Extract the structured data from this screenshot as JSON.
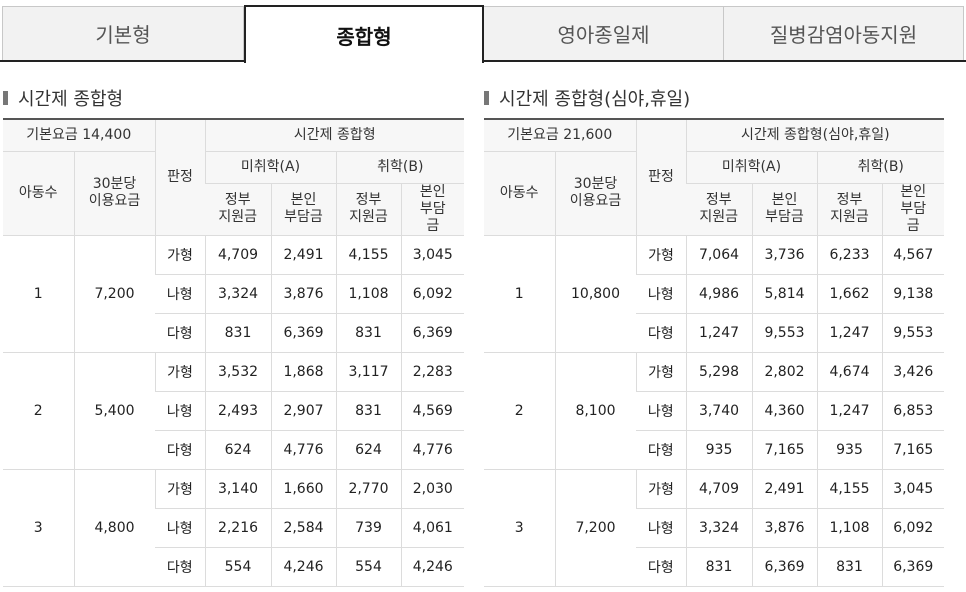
{
  "tabs": [
    {
      "label": "기본형",
      "active": false
    },
    {
      "label": "종합형",
      "active": true
    },
    {
      "label": "영아종일제",
      "active": false
    },
    {
      "label": "질병감염아동지원",
      "active": false
    }
  ],
  "tables": [
    {
      "title": "시간제 종합형",
      "base_fee": "기본요금 14,400",
      "header": {
        "group": "시간제 종합형",
        "child_count": "아동수",
        "fee_30min": "30분당 이용요금",
        "judge": "판정",
        "unenrolled": "미취학(A)",
        "enrolled": "취학(B)",
        "gov": "정부 지원금",
        "self": "본인 부담금"
      },
      "rows": [
        {
          "children": "1",
          "fee": "7,200",
          "grades": [
            {
              "grade": "가형",
              "a_gov": "4,709",
              "a_self": "2,491",
              "b_gov": "4,155",
              "b_self": "3,045"
            },
            {
              "grade": "나형",
              "a_gov": "3,324",
              "a_self": "3,876",
              "b_gov": "1,108",
              "b_self": "6,092"
            },
            {
              "grade": "다형",
              "a_gov": "831",
              "a_self": "6,369",
              "b_gov": "831",
              "b_self": "6,369"
            }
          ]
        },
        {
          "children": "2",
          "fee": "5,400",
          "grades": [
            {
              "grade": "가형",
              "a_gov": "3,532",
              "a_self": "1,868",
              "b_gov": "3,117",
              "b_self": "2,283"
            },
            {
              "grade": "나형",
              "a_gov": "2,493",
              "a_self": "2,907",
              "b_gov": "831",
              "b_self": "4,569"
            },
            {
              "grade": "다형",
              "a_gov": "624",
              "a_self": "4,776",
              "b_gov": "624",
              "b_self": "4,776"
            }
          ]
        },
        {
          "children": "3",
          "fee": "4,800",
          "grades": [
            {
              "grade": "가형",
              "a_gov": "3,140",
              "a_self": "1,660",
              "b_gov": "2,770",
              "b_self": "2,030"
            },
            {
              "grade": "나형",
              "a_gov": "2,216",
              "a_self": "2,584",
              "b_gov": "739",
              "b_self": "4,061"
            },
            {
              "grade": "다형",
              "a_gov": "554",
              "a_self": "4,246",
              "b_gov": "554",
              "b_self": "4,246"
            }
          ]
        }
      ]
    },
    {
      "title": "시간제 종합형(심야,휴일)",
      "base_fee": "기본요금 21,600",
      "header": {
        "group": "시간제 종합형(심야,휴일)",
        "child_count": "아동수",
        "fee_30min": "30분당 이용요금",
        "judge": "판정",
        "unenrolled": "미취학(A)",
        "enrolled": "취학(B)",
        "gov": "정부 지원금",
        "self": "본인 부담금"
      },
      "rows": [
        {
          "children": "1",
          "fee": "10,800",
          "grades": [
            {
              "grade": "가형",
              "a_gov": "7,064",
              "a_self": "3,736",
              "b_gov": "6,233",
              "b_self": "4,567"
            },
            {
              "grade": "나형",
              "a_gov": "4,986",
              "a_self": "5,814",
              "b_gov": "1,662",
              "b_self": "9,138"
            },
            {
              "grade": "다형",
              "a_gov": "1,247",
              "a_self": "9,553",
              "b_gov": "1,247",
              "b_self": "9,553"
            }
          ]
        },
        {
          "children": "2",
          "fee": "8,100",
          "grades": [
            {
              "grade": "가형",
              "a_gov": "5,298",
              "a_self": "2,802",
              "b_gov": "4,674",
              "b_self": "3,426"
            },
            {
              "grade": "나형",
              "a_gov": "3,740",
              "a_self": "4,360",
              "b_gov": "1,247",
              "b_self": "6,853"
            },
            {
              "grade": "다형",
              "a_gov": "935",
              "a_self": "7,165",
              "b_gov": "935",
              "b_self": "7,165"
            }
          ]
        },
        {
          "children": "3",
          "fee": "7,200",
          "grades": [
            {
              "grade": "가형",
              "a_gov": "4,709",
              "a_self": "2,491",
              "b_gov": "4,155",
              "b_self": "3,045"
            },
            {
              "grade": "나형",
              "a_gov": "3,324",
              "a_self": "3,876",
              "b_gov": "1,108",
              "b_self": "6,092"
            },
            {
              "grade": "다형",
              "a_gov": "831",
              "a_self": "6,369",
              "b_gov": "831",
              "b_self": "6,369"
            }
          ]
        }
      ]
    }
  ]
}
